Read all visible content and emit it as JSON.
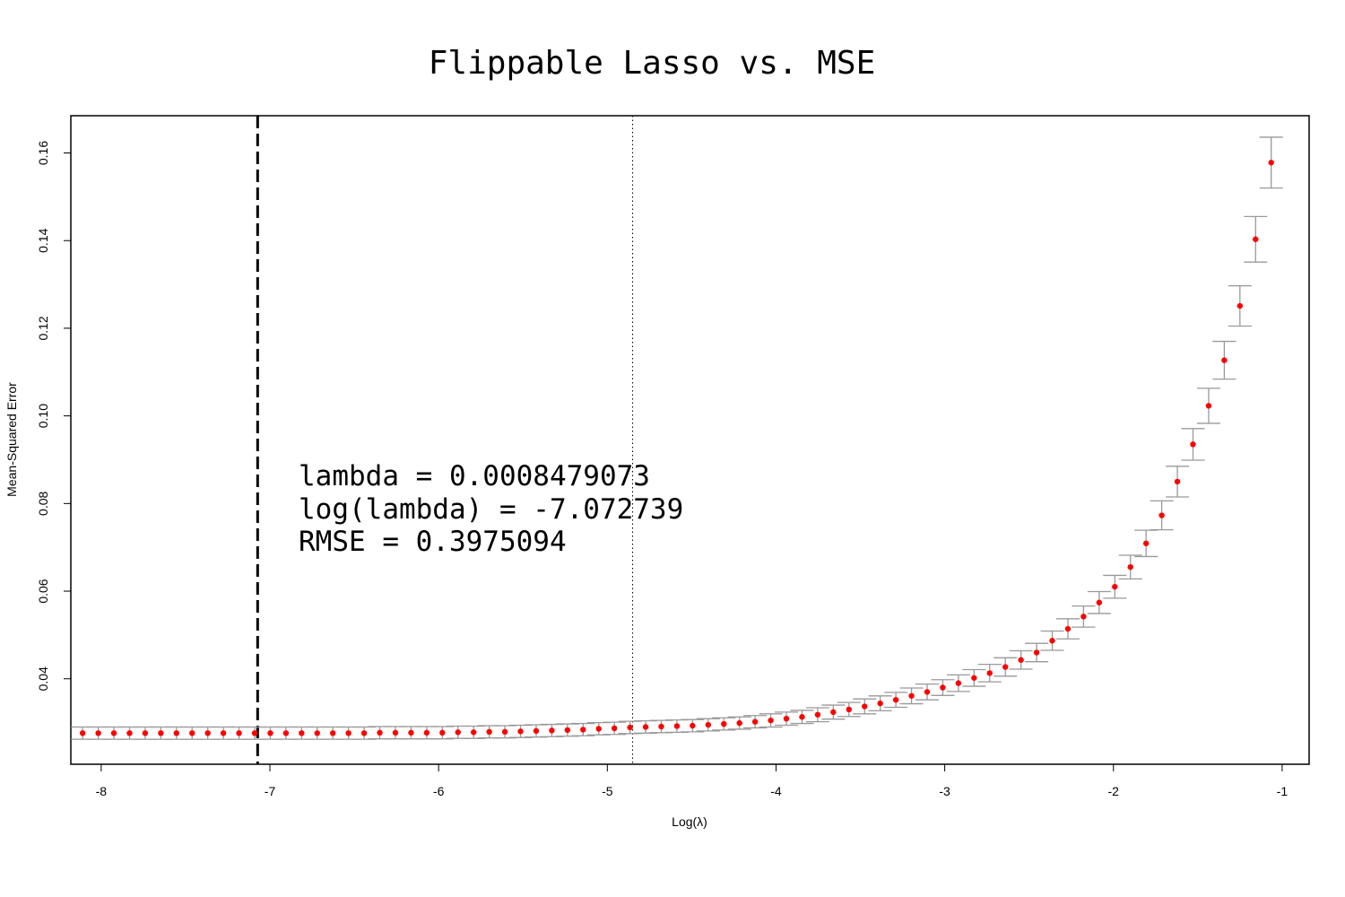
{
  "chart_data": {
    "type": "scatter",
    "title": "Flippable Lasso vs. MSE",
    "xlabel": "Log(λ)",
    "ylabel": "Mean-Squared Error",
    "xlim": [
      -8.18,
      -0.84
    ],
    "ylim": [
      0.0205,
      0.1685
    ],
    "x_ticks": [
      -8,
      -7,
      -6,
      -5,
      -4,
      -3,
      -2,
      -1
    ],
    "y_ticks": [
      0.04,
      0.06,
      0.08,
      0.1,
      0.12,
      0.14,
      0.16
    ],
    "x_tick_labels": [
      "-8",
      "-7",
      "-6",
      "-5",
      "-4",
      "-3",
      "-2",
      "-1"
    ],
    "y_tick_labels": [
      "0.04",
      "0.06",
      "0.08",
      "0.10",
      "0.12",
      "0.14",
      "0.16"
    ],
    "grid": false,
    "vlines": [
      {
        "x": -7.072739,
        "style": "dashed"
      },
      {
        "x": -4.85,
        "style": "dotted"
      }
    ],
    "annotations": [
      "lambda = 0.0008479073",
      "log(lambda) = -7.072739",
      "RMSE = 0.3975094"
    ],
    "series": [
      {
        "x_start": -8.11,
        "x_step": 0.0927,
        "mse": [
          0.0276,
          0.0276,
          0.0276,
          0.0276,
          0.0276,
          0.0276,
          0.0276,
          0.0276,
          0.0276,
          0.0276,
          0.0276,
          0.0276,
          0.0276,
          0.0276,
          0.0276,
          0.0276,
          0.0276,
          0.0276,
          0.0276,
          0.0277,
          0.0277,
          0.0277,
          0.0277,
          0.0277,
          0.0278,
          0.0278,
          0.0279,
          0.0279,
          0.028,
          0.0281,
          0.0282,
          0.0283,
          0.0284,
          0.0286,
          0.0287,
          0.0289,
          0.029,
          0.0291,
          0.0292,
          0.0293,
          0.0295,
          0.0297,
          0.0299,
          0.0302,
          0.0305,
          0.0309,
          0.0313,
          0.0318,
          0.0324,
          0.033,
          0.0337,
          0.0344,
          0.0352,
          0.0361,
          0.037,
          0.038,
          0.039,
          0.0402,
          0.0413,
          0.0427,
          0.0443,
          0.046,
          0.0487,
          0.0514,
          0.0542,
          0.0574,
          0.061,
          0.0655,
          0.0709,
          0.0773,
          0.085,
          0.0935,
          0.1023,
          0.1127,
          0.1251,
          0.1403,
          0.1578
        ],
        "se": [
          0.0014,
          0.0014,
          0.0014,
          0.0014,
          0.0014,
          0.0014,
          0.0014,
          0.0014,
          0.0014,
          0.0014,
          0.0014,
          0.0014,
          0.0014,
          0.0014,
          0.0014,
          0.0014,
          0.0014,
          0.0014,
          0.0014,
          0.0014,
          0.0014,
          0.0014,
          0.0014,
          0.0014,
          0.0014,
          0.0014,
          0.0014,
          0.0014,
          0.0014,
          0.0014,
          0.0014,
          0.0014,
          0.0014,
          0.0014,
          0.0014,
          0.0014,
          0.0014,
          0.0014,
          0.0014,
          0.0014,
          0.0014,
          0.0014,
          0.0014,
          0.0014,
          0.0015,
          0.0015,
          0.0015,
          0.0016,
          0.0016,
          0.0016,
          0.0017,
          0.0017,
          0.0017,
          0.0018,
          0.0018,
          0.0018,
          0.0019,
          0.0019,
          0.002,
          0.0021,
          0.0021,
          0.0021,
          0.0022,
          0.0023,
          0.0024,
          0.0025,
          0.0026,
          0.0027,
          0.003,
          0.0033,
          0.0035,
          0.0036,
          0.004,
          0.0043,
          0.0046,
          0.0052,
          0.0058
        ]
      }
    ],
    "colors": {
      "point": "#ff0000",
      "error_bar": "#999999",
      "axis": "#000000"
    }
  }
}
